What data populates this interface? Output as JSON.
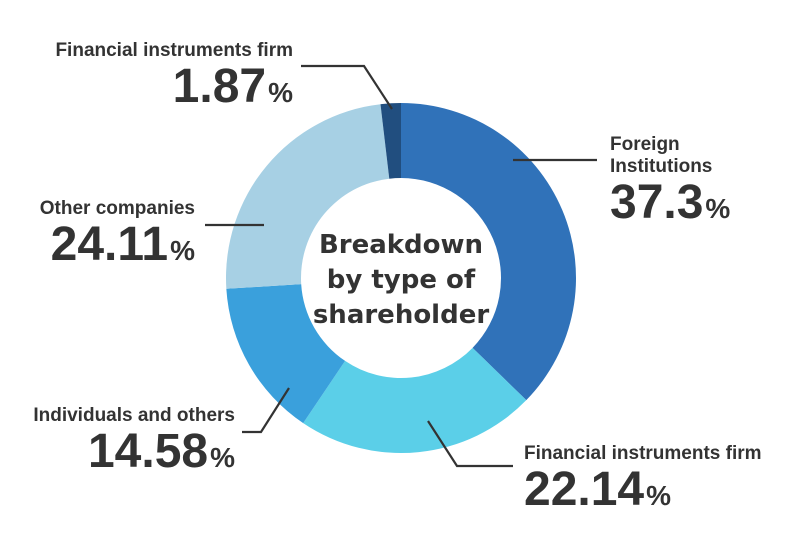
{
  "chart_data": {
    "type": "pie",
    "subtype": "donut",
    "title": "Breakdown by type of shareholder",
    "center_label_lines": [
      "Breakdown",
      "by type of",
      "shareholder"
    ],
    "start_angle_deg": 0,
    "direction": "clockwise",
    "slices": [
      {
        "label": "Foreign Institutions",
        "label_lines": [
          "Foreign",
          "Institutions"
        ],
        "value": 37.3,
        "display": "37.3",
        "color": "#3072b9"
      },
      {
        "label": "Financial instruments firm",
        "label_lines": [
          "Financial instruments firm"
        ],
        "value": 22.14,
        "display": "22.14",
        "color": "#5bcfe8"
      },
      {
        "label": "Individuals and others",
        "label_lines": [
          "Individuals and others"
        ],
        "value": 14.58,
        "display": "14.58",
        "color": "#3aa0dc"
      },
      {
        "label": "Other companies",
        "label_lines": [
          "Other companies"
        ],
        "value": 24.11,
        "display": "24.11",
        "color": "#a7d0e4"
      },
      {
        "label": "Financial instruments firm",
        "label_lines": [
          "Financial instruments firm"
        ],
        "value": 1.87,
        "display": "1.87",
        "color": "#214e7f"
      }
    ],
    "unit": "%",
    "legend": "none (callout labels)"
  },
  "labels": {
    "foreign": {
      "name1": "Foreign",
      "name2": "Institutions",
      "value": "37.3",
      "unit": "%"
    },
    "fin_large": {
      "name": "Financial instruments firm",
      "value": "22.14",
      "unit": "%"
    },
    "individuals": {
      "name": "Individuals and others",
      "value": "14.58",
      "unit": "%"
    },
    "other_companies": {
      "name": "Other companies",
      "value": "24.11",
      "unit": "%"
    },
    "fin_small": {
      "name": "Financial instruments firm",
      "value": "1.87",
      "unit": "%"
    }
  },
  "center": {
    "line1": "Breakdown",
    "line2": "by type of",
    "line3": "shareholder"
  }
}
